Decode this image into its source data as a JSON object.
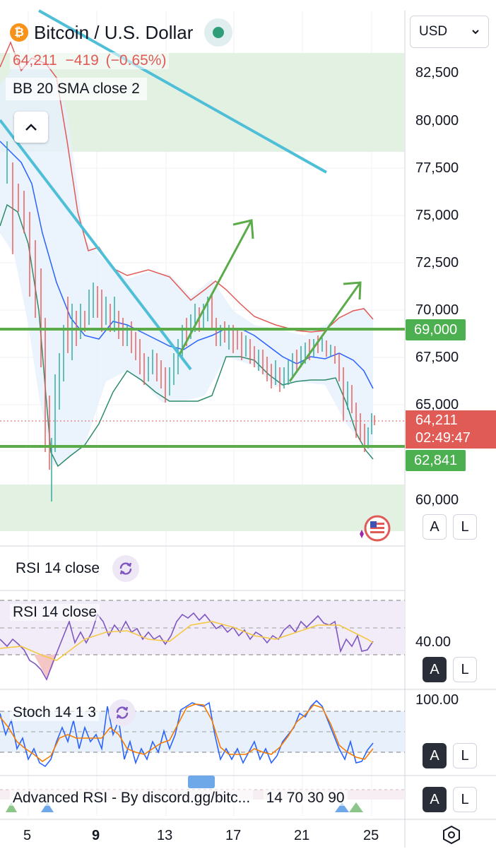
{
  "symbol": {
    "title": "Bitcoin / U.S. Dollar",
    "coin_glyph": "₿"
  },
  "legend": {
    "last_price": "64,211",
    "change": "−419",
    "change_pct": "(−0.65%)",
    "indicator": "BB 20 SMA close 2"
  },
  "currency": {
    "selected": "USD"
  },
  "price_axis": {
    "labels": [
      "82,500",
      "80,000",
      "77,500",
      "75,000",
      "72,500",
      "70,000",
      "67,500",
      "65,000",
      "60,000"
    ]
  },
  "tags": {
    "level_high": "69,000",
    "last_price": "64,211",
    "countdown": "02:49:47",
    "level_low": "62,841"
  },
  "buttons": {
    "auto": "A",
    "log": "L"
  },
  "panes": {
    "rsi_collapsed": "RSI 14 close",
    "rsi": "RSI 14 close",
    "rsi_axis": "40.00",
    "stoch": "Stoch 14 1 3",
    "stoch_axis": "100.00",
    "adv_rsi": "Advanced RSI - By discord.gg/bitc...",
    "adv_rsi_params": "14 70 30 90"
  },
  "time_axis": {
    "labels": [
      "5",
      "9",
      "13",
      "17",
      "21",
      "25"
    ]
  },
  "chart_data": {
    "type": "candlestick",
    "title": "Bitcoin / U.S. Dollar",
    "y_range": [
      58500,
      84500
    ],
    "horizontal_levels": [
      69000,
      62841
    ],
    "current_price": 64211,
    "colors": {
      "up": "#26a69a",
      "down": "#ef5350",
      "bb_upper": "#e05a56",
      "bb_basis": "#2962ff",
      "bb_lower": "#2e8b6b",
      "trendline": "#4fbfd8",
      "arrow": "#5cab4a",
      "level": "#5cab4a"
    }
  }
}
